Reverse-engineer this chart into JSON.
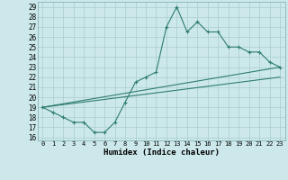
{
  "xlabel": "Humidex (Indice chaleur)",
  "background_color": "#cce8ea",
  "grid_color": "#aaccce",
  "line_color": "#2e7d6e",
  "xlim": [
    -0.5,
    23.5
  ],
  "ylim": [
    15.7,
    29.5
  ],
  "xticks": [
    0,
    1,
    2,
    3,
    4,
    5,
    6,
    7,
    8,
    9,
    10,
    11,
    12,
    13,
    14,
    15,
    16,
    17,
    18,
    19,
    20,
    21,
    22,
    23
  ],
  "yticks": [
    16,
    17,
    18,
    19,
    20,
    21,
    22,
    23,
    24,
    25,
    26,
    27,
    28,
    29
  ],
  "series1_x": [
    0,
    1,
    2,
    3,
    4,
    5,
    6,
    7,
    8,
    9,
    10,
    11,
    12,
    13,
    14,
    15,
    16,
    17,
    18,
    19,
    20,
    21,
    22,
    23
  ],
  "series1_y": [
    19,
    18.5,
    18,
    17.5,
    17.5,
    16.5,
    16.5,
    17.5,
    19.5,
    21.5,
    22,
    22.5,
    27,
    29,
    26.5,
    27.5,
    26.5,
    26.5,
    25.0,
    25.0,
    24.5,
    24.5,
    23.5,
    23.0
  ],
  "series2_x": [
    0,
    23
  ],
  "series2_y": [
    19.0,
    23.0
  ],
  "series3_x": [
    0,
    23
  ],
  "series3_y": [
    19.0,
    22.0
  ]
}
